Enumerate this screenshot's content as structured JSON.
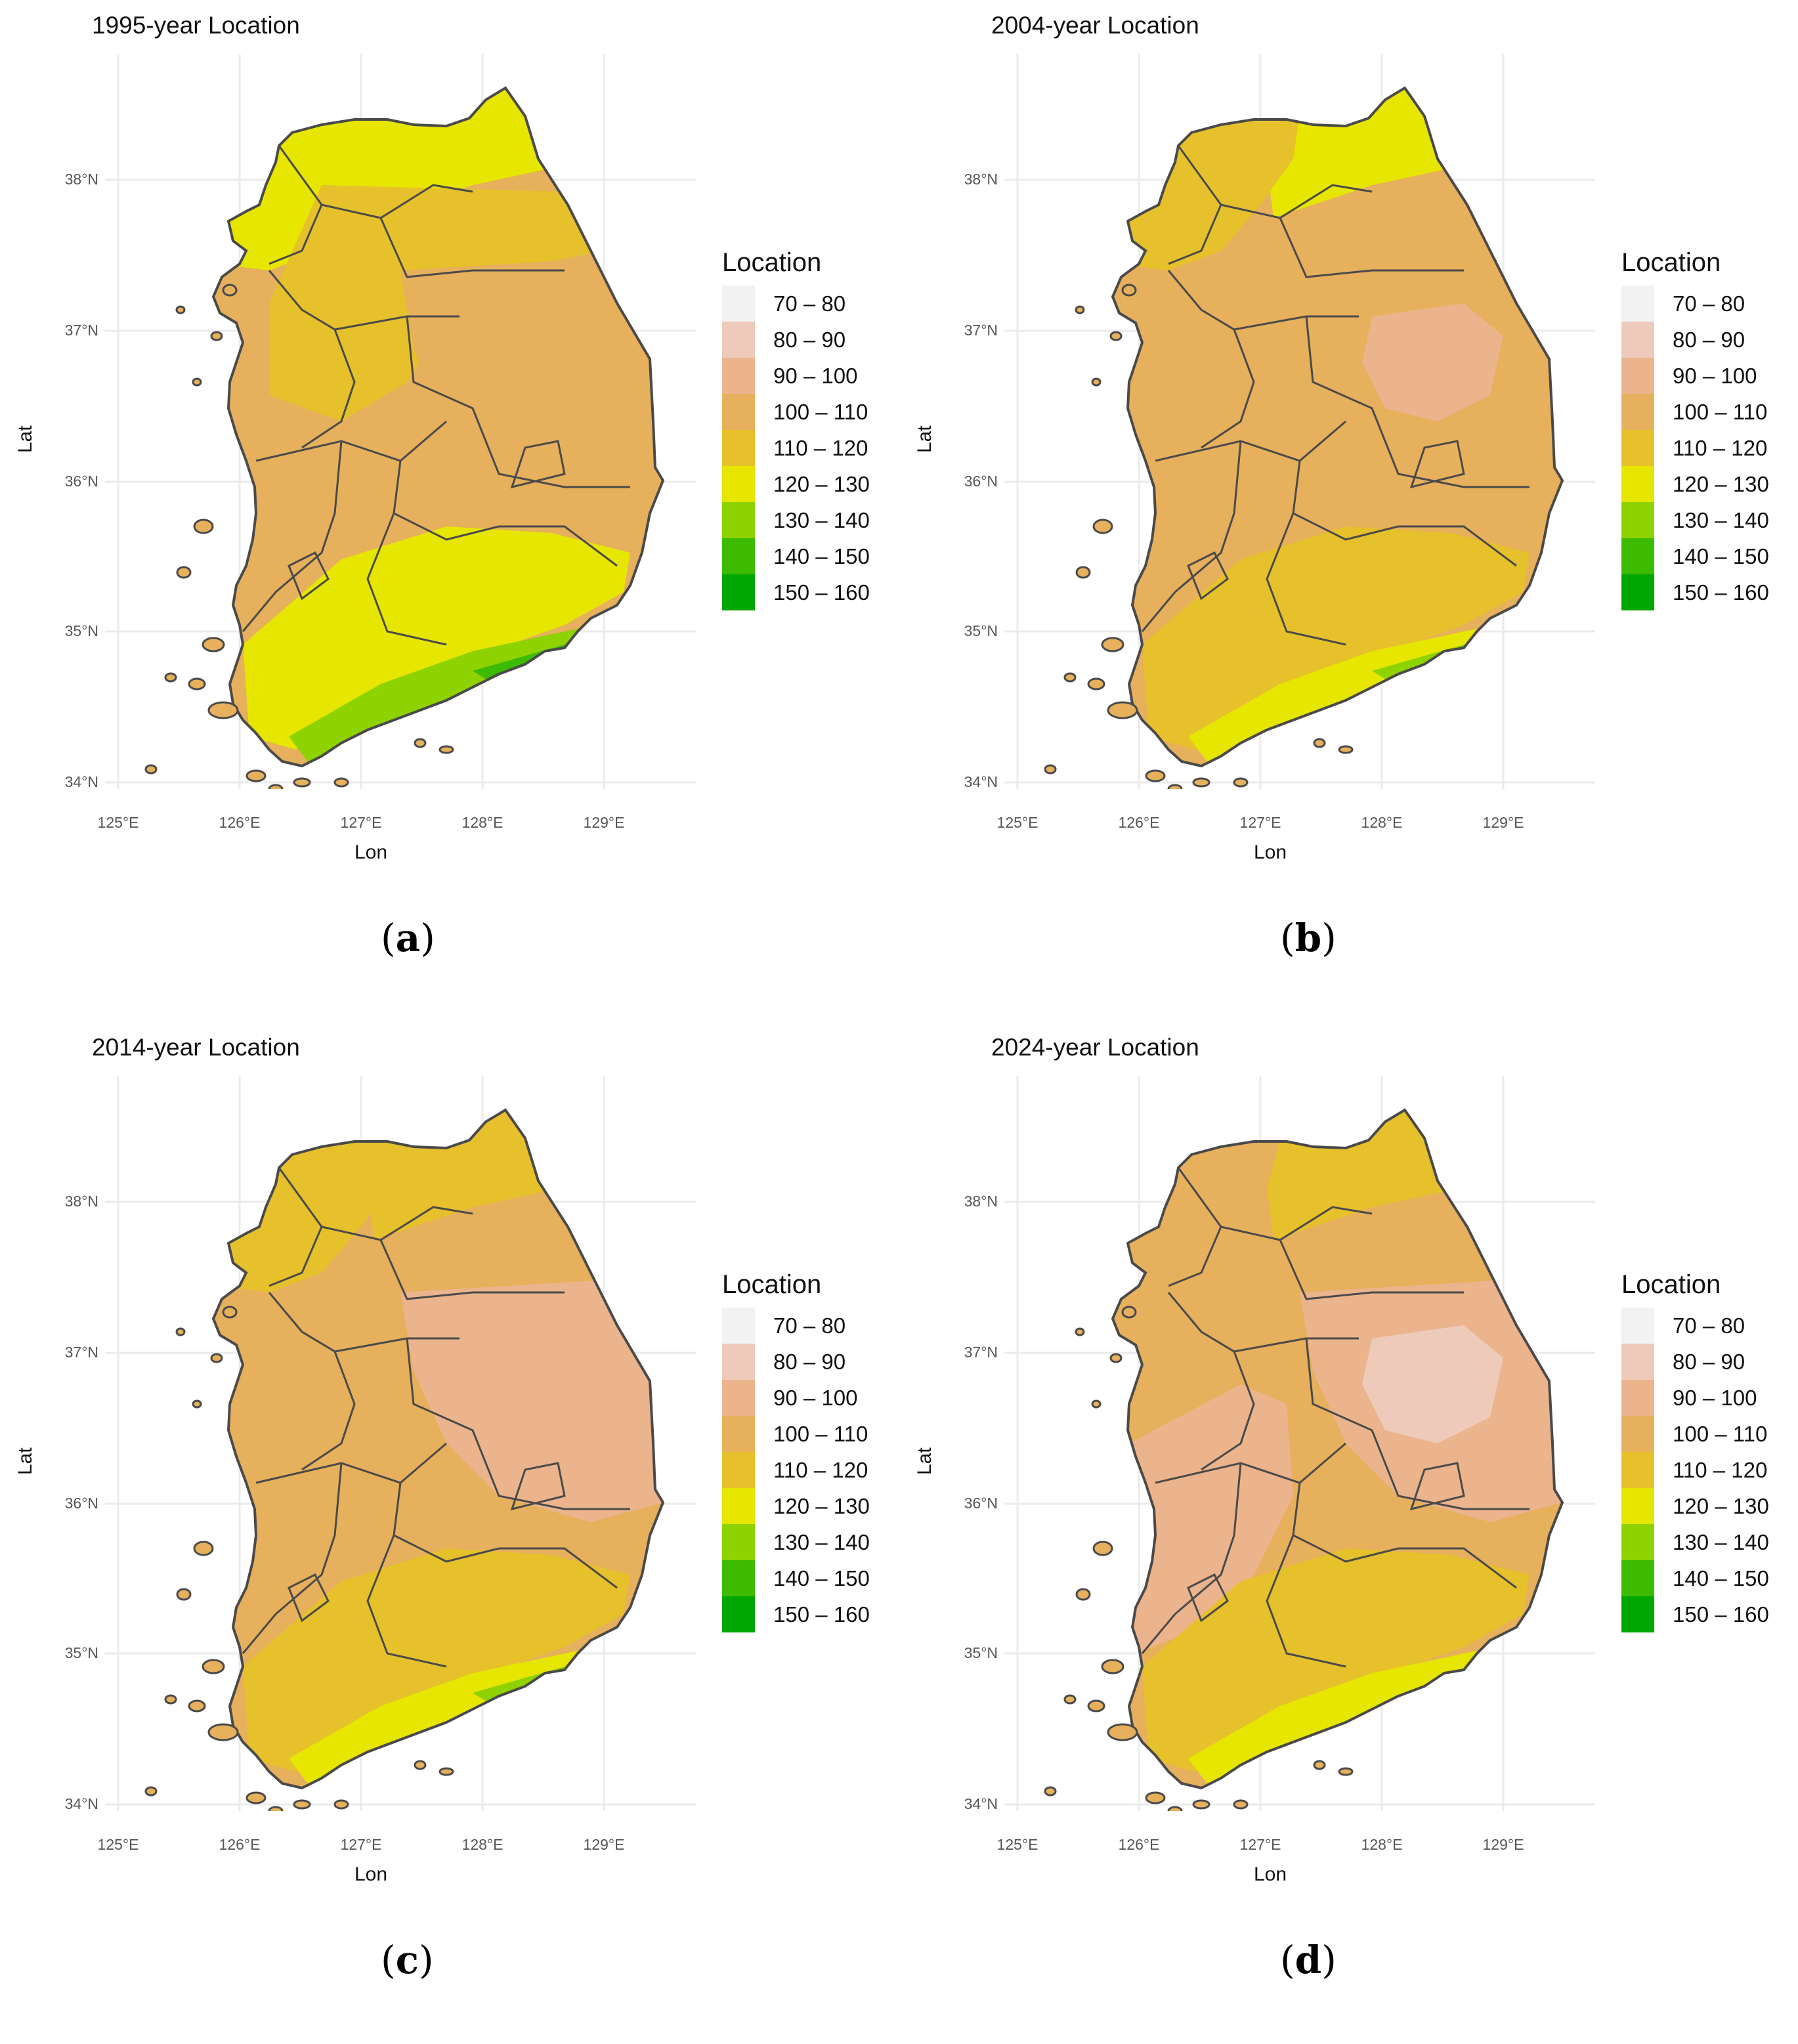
{
  "legend": {
    "title": "Location",
    "bins": [
      {
        "label": "70 – 80",
        "color": "#f2f2f2"
      },
      {
        "label": "80 – 90",
        "color": "#eecaba"
      },
      {
        "label": "90 – 100",
        "color": "#ebb48c"
      },
      {
        "label": "100 – 110",
        "color": "#e6b05c"
      },
      {
        "label": "110 – 120",
        "color": "#e6c12c"
      },
      {
        "label": "120 – 130",
        "color": "#e6e600"
      },
      {
        "label": "130 – 140",
        "color": "#8ed200"
      },
      {
        "label": "140 – 150",
        "color": "#3dbb00"
      },
      {
        "label": "150 – 160",
        "color": "#00a600"
      }
    ]
  },
  "axes": {
    "x_title": "Lon",
    "y_title": "Lat",
    "x_ticks": [
      "125°E",
      "126°E",
      "127°E",
      "128°E",
      "129°E"
    ],
    "y_ticks": [
      "34°N",
      "35°N",
      "36°N",
      "37°N",
      "38°N"
    ]
  },
  "panels": [
    {
      "title": "1995-year Location",
      "caption": "(a)",
      "caption_letter": "a",
      "base_color": "#e6b05c",
      "zones": [
        {
          "region": "northwest",
          "value_range": "120 – 130",
          "color": "#e6e600"
        },
        {
          "region": "north-coast",
          "value_range": "120 – 130",
          "color": "#e6e600"
        },
        {
          "region": "central",
          "value_range": "110 – 120",
          "color": "#e6c12c"
        },
        {
          "region": "east-interior",
          "value_range": "100 – 110",
          "color": "#e6b05c"
        },
        {
          "region": "south-band",
          "value_range": "120 – 130",
          "color": "#e6e600"
        },
        {
          "region": "south-coast",
          "value_range": "130 – 140",
          "color": "#8ed200"
        },
        {
          "region": "southeast-tip",
          "value_range": "140 – 150",
          "color": "#3dbb00"
        }
      ]
    },
    {
      "title": "2004-year Location",
      "caption": "(b)",
      "caption_letter": "b",
      "base_color": "#e6b05c",
      "zones": [
        {
          "region": "north-coast",
          "value_range": "120 – 130",
          "color": "#e6e600"
        },
        {
          "region": "northwest",
          "value_range": "110 – 120",
          "color": "#e6c12c"
        },
        {
          "region": "east-interior",
          "value_range": "100 – 110",
          "color": "#e6b05c"
        },
        {
          "region": "east-core",
          "value_range": "90 – 100",
          "color": "#ebb48c"
        },
        {
          "region": "south-band",
          "value_range": "110 – 120",
          "color": "#e6c12c"
        },
        {
          "region": "south-coast",
          "value_range": "120 – 130",
          "color": "#e6e600"
        },
        {
          "region": "southeast-tip",
          "value_range": "130 – 140",
          "color": "#8ed200"
        }
      ]
    },
    {
      "title": "2014-year Location",
      "caption": "(c)",
      "caption_letter": "c",
      "base_color": "#e6b05c",
      "zones": [
        {
          "region": "north-coast",
          "value_range": "110 – 120",
          "color": "#e6c12c"
        },
        {
          "region": "northwest",
          "value_range": "110 – 120",
          "color": "#e6c12c"
        },
        {
          "region": "east-interior",
          "value_range": "90 – 100",
          "color": "#ebb48c"
        },
        {
          "region": "south-band",
          "value_range": "110 – 120",
          "color": "#e6c12c"
        },
        {
          "region": "south-coast",
          "value_range": "120 – 130",
          "color": "#e6e600"
        },
        {
          "region": "southeast-tip",
          "value_range": "130 – 140",
          "color": "#8ed200"
        }
      ]
    },
    {
      "title": "2024-year Location",
      "caption": "(d)",
      "caption_letter": "d",
      "base_color": "#e6b05c",
      "zones": [
        {
          "region": "north-coast",
          "value_range": "110 – 120",
          "color": "#e6c12c"
        },
        {
          "region": "east-interior",
          "value_range": "90 – 100",
          "color": "#ebb48c"
        },
        {
          "region": "west-interior",
          "value_range": "90 – 100",
          "color": "#ebb48c"
        },
        {
          "region": "east-core",
          "value_range": "80 – 90",
          "color": "#eecaba"
        },
        {
          "region": "south-band",
          "value_range": "110 – 120",
          "color": "#e6c12c"
        },
        {
          "region": "south-coast",
          "value_range": "120 – 130",
          "color": "#e6e600"
        }
      ]
    }
  ]
}
